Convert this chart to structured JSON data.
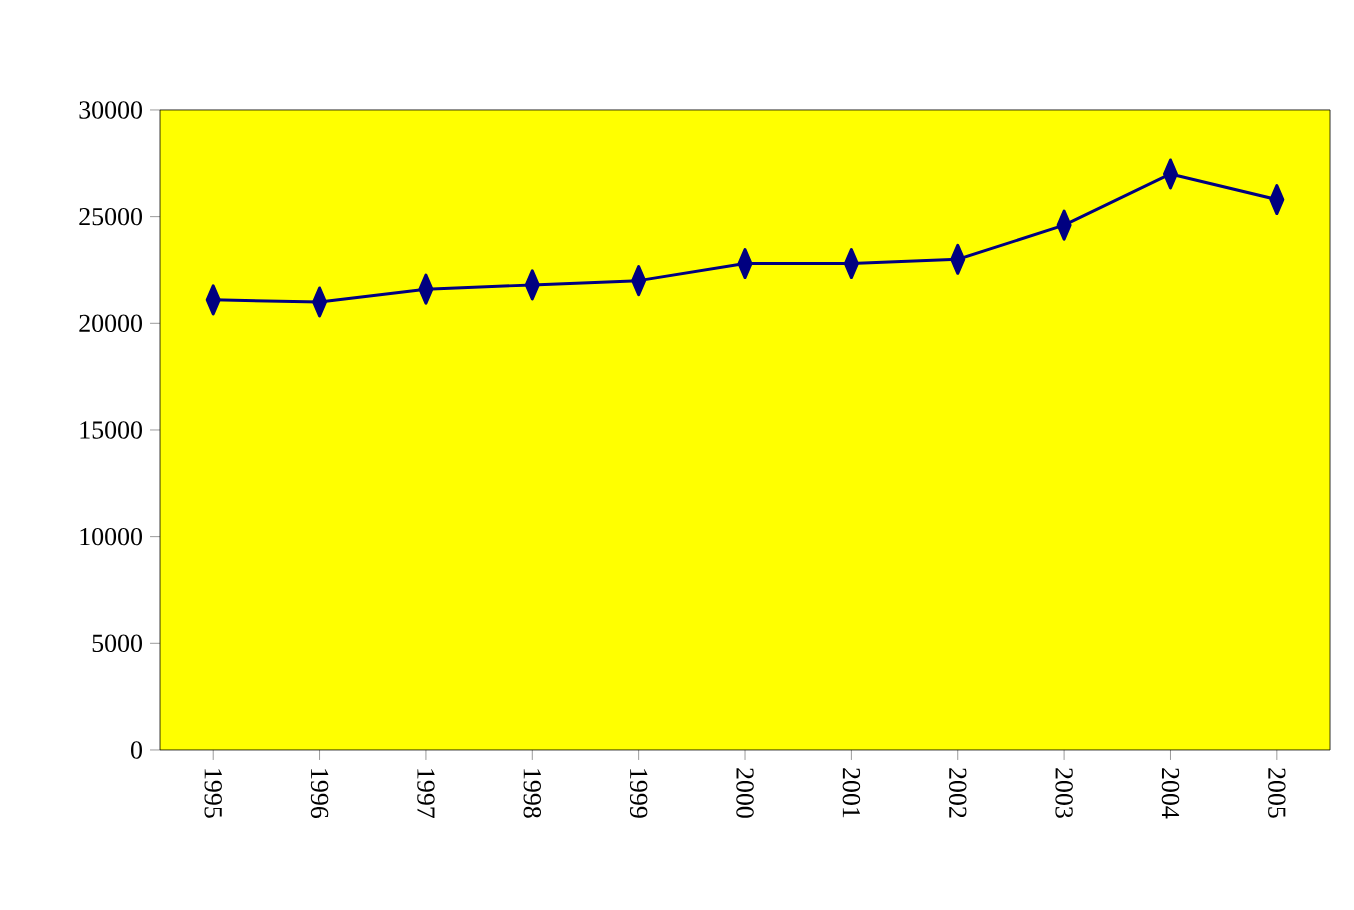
{
  "chart_data": {
    "type": "line",
    "categories": [
      "1995",
      "1996",
      "1997",
      "1998",
      "1999",
      "2000",
      "2001",
      "2002",
      "2003",
      "2004",
      "2005"
    ],
    "values": [
      21100,
      21000,
      21600,
      21800,
      22000,
      22800,
      22800,
      23000,
      24600,
      27000,
      25800
    ],
    "color": "#000080",
    "marker": "diamond",
    "ylim": [
      0,
      30000
    ],
    "yticks": [
      0,
      5000,
      10000,
      15000,
      20000,
      25000,
      30000
    ],
    "grid": false
  }
}
